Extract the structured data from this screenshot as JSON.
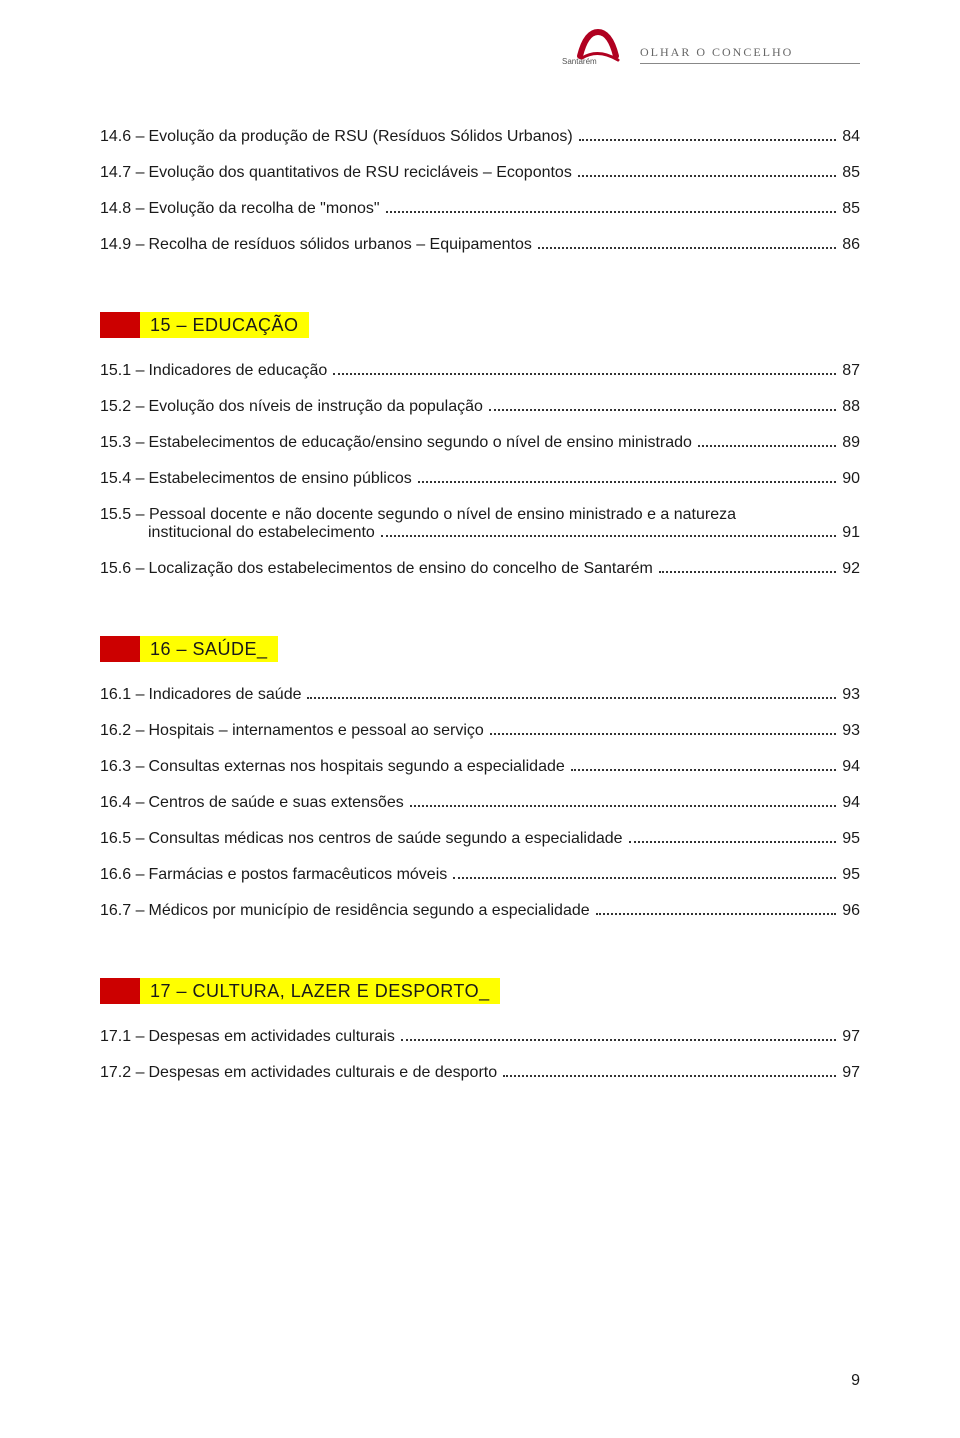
{
  "header": {
    "logo_text": "Santarém",
    "title": "OLHAR O CONCELHO"
  },
  "pre_items": [
    {
      "num": "14.6 –",
      "text": "Evolução da produção de RSU (Resíduos Sólidos Urbanos)",
      "page": "84"
    },
    {
      "num": "14.7 –",
      "text": "Evolução dos quantitativos de RSU recicláveis – Ecopontos",
      "page": "85"
    },
    {
      "num": "14.8 –",
      "text": "Evolução da recolha de \"monos\"",
      "page": "85"
    },
    {
      "num": "14.9 –",
      "text": "Recolha de resíduos sólidos urbanos – Equipamentos",
      "page": "86"
    }
  ],
  "sections": [
    {
      "title": "15 – EDUCAÇÃO",
      "items": [
        {
          "num": "15.1 –",
          "text": "Indicadores de educação",
          "page": "87"
        },
        {
          "num": "15.2 –",
          "text": "Evolução dos níveis de instrução da população",
          "page": "88"
        },
        {
          "num": "15.3 –",
          "text": "Estabelecimentos de educação/ensino segundo o nível de ensino ministrado",
          "page": "89"
        },
        {
          "num": "15.4 –",
          "text": "Estabelecimentos de ensino públicos",
          "page": "90"
        },
        {
          "num": "15.5 –",
          "text_line1": "Pessoal docente e não docente segundo o nível de ensino ministrado e a natureza",
          "text_line2": "institucional do estabelecimento",
          "page": "91",
          "multiline": true
        },
        {
          "num": "15.6 –",
          "text": "Localização dos estabelecimentos de ensino do concelho de Santarém",
          "page": "92"
        }
      ]
    },
    {
      "title": "16 – SAÚDE_",
      "items": [
        {
          "num": "16.1 –",
          "text": "Indicadores de saúde",
          "page": "93"
        },
        {
          "num": "16.2 –",
          "text": "Hospitais – internamentos e pessoal ao serviço",
          "page": "93"
        },
        {
          "num": "16.3 –",
          "text": "Consultas externas nos hospitais segundo a especialidade",
          "page": "94"
        },
        {
          "num": "16.4 –",
          "text": "Centros de saúde e suas extensões",
          "page": "94"
        },
        {
          "num": "16.5 –",
          "text": "Consultas médicas nos centros de saúde segundo a especialidade",
          "page": "95"
        },
        {
          "num": "16.6 –",
          "text": "Farmácias e postos farmacêuticos móveis",
          "page": "95"
        },
        {
          "num": "16.7 –",
          "text": "Médicos por município de residência segundo a especialidade",
          "page": "96"
        }
      ]
    },
    {
      "title": "17 – CULTURA, LAZER E DESPORTO_",
      "items": [
        {
          "num": "17.1 –",
          "text": "Despesas em actividades culturais",
          "page": "97"
        },
        {
          "num": "17.2 –",
          "text": "Despesas em actividades culturais e de desporto",
          "page": "97"
        }
      ]
    }
  ],
  "page_number": "9",
  "colors": {
    "red_bar": "#cc0000",
    "yellow_bar": "#ffff00",
    "text": "#1a1a1a",
    "header_text": "#666666"
  }
}
